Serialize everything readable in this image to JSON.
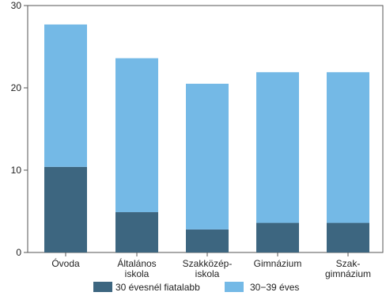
{
  "chart_data": {
    "type": "bar",
    "stacked": true,
    "categories": [
      [
        "Óvoda"
      ],
      [
        "Általános",
        "iskola"
      ],
      [
        "Szakközép-",
        "iskola"
      ],
      [
        "Gimnázium"
      ],
      [
        "Szak-",
        "gimnázium"
      ]
    ],
    "series": [
      {
        "name": "30 évesnél fiatalabb",
        "color": "#3d6680",
        "values": [
          10.4,
          4.9,
          2.8,
          3.6,
          3.6
        ]
      },
      {
        "name": "30−39 éves",
        "color": "#74b9e6",
        "values": [
          17.3,
          18.7,
          17.7,
          18.3,
          18.3
        ]
      }
    ],
    "ylim": [
      0,
      30
    ],
    "yticks": [
      0,
      10,
      20,
      30
    ],
    "title": "",
    "xlabel": "",
    "ylabel": "",
    "grid": false,
    "legend_position": "bottom"
  }
}
